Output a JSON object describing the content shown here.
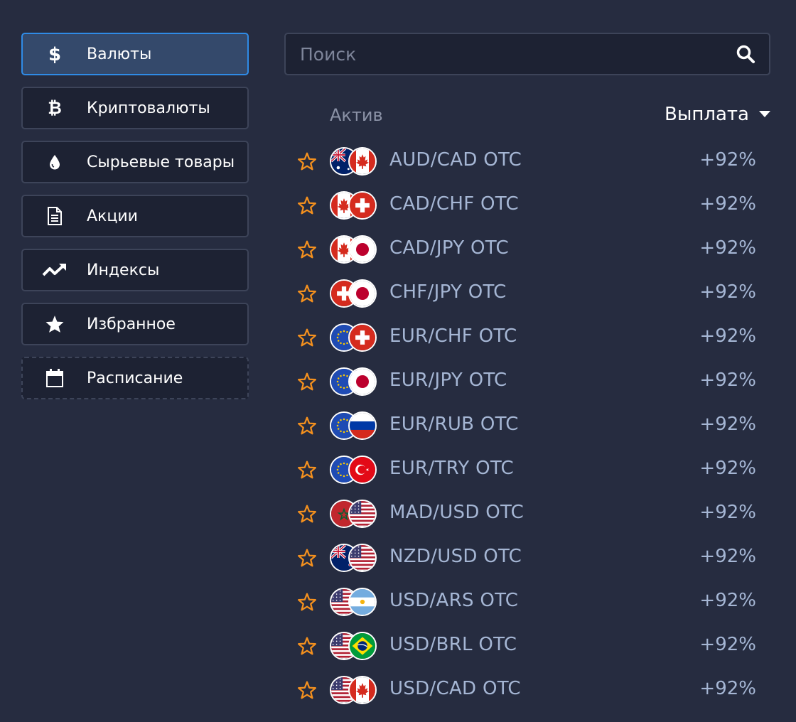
{
  "sidebar": {
    "items": [
      {
        "label": "Валюты",
        "icon": "dollar-icon",
        "active": true
      },
      {
        "label": "Криптовалюты",
        "icon": "bitcoin-icon"
      },
      {
        "label": "Сырьевые товары",
        "icon": "drop-icon"
      },
      {
        "label": "Акции",
        "icon": "document-icon"
      },
      {
        "label": "Индексы",
        "icon": "trend-up-icon"
      },
      {
        "label": "Избранное",
        "icon": "star-icon"
      },
      {
        "label": "Расписание",
        "icon": "calendar-icon"
      }
    ]
  },
  "search": {
    "placeholder": "Поиск",
    "value": ""
  },
  "table": {
    "header_asset": "Актив",
    "header_payout": "Выплата",
    "rows": [
      {
        "name": "AUD/CAD OTC",
        "payout": "+92%",
        "flags": [
          "au",
          "ca"
        ]
      },
      {
        "name": "CAD/CHF OTC",
        "payout": "+92%",
        "flags": [
          "ca",
          "ch"
        ]
      },
      {
        "name": "CAD/JPY OTC",
        "payout": "+92%",
        "flags": [
          "ca",
          "jp"
        ]
      },
      {
        "name": "CHF/JPY OTC",
        "payout": "+92%",
        "flags": [
          "ch",
          "jp"
        ]
      },
      {
        "name": "EUR/CHF OTC",
        "payout": "+92%",
        "flags": [
          "eu",
          "ch"
        ]
      },
      {
        "name": "EUR/JPY OTC",
        "payout": "+92%",
        "flags": [
          "eu",
          "jp"
        ]
      },
      {
        "name": "EUR/RUB OTC",
        "payout": "+92%",
        "flags": [
          "eu",
          "ru"
        ]
      },
      {
        "name": "EUR/TRY OTC",
        "payout": "+92%",
        "flags": [
          "eu",
          "tr"
        ]
      },
      {
        "name": "MAD/USD OTC",
        "payout": "+92%",
        "flags": [
          "ma",
          "us"
        ]
      },
      {
        "name": "NZD/USD OTC",
        "payout": "+92%",
        "flags": [
          "nz",
          "us"
        ]
      },
      {
        "name": "USD/ARS OTC",
        "payout": "+92%",
        "flags": [
          "us",
          "ar"
        ]
      },
      {
        "name": "USD/BRL OTC",
        "payout": "+92%",
        "flags": [
          "us",
          "br"
        ]
      },
      {
        "name": "USD/CAD OTC",
        "payout": "+92%",
        "flags": [
          "us",
          "ca"
        ]
      }
    ]
  },
  "colors": {
    "background": "#262c40",
    "active_border": "#2f8be6",
    "star": "#f5911e",
    "row_text": "#a5b6d4"
  }
}
